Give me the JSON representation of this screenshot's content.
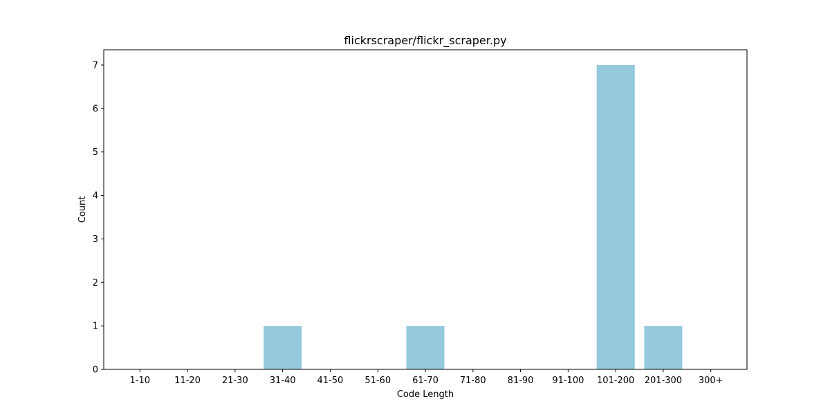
{
  "chart_data": {
    "type": "bar",
    "title": "flickrscraper/flickr_scraper.py",
    "xlabel": "Code Length",
    "ylabel": "Count",
    "categories": [
      "1-10",
      "11-20",
      "21-30",
      "31-40",
      "41-50",
      "51-60",
      "61-70",
      "71-80",
      "81-90",
      "91-100",
      "101-200",
      "201-300",
      "300+"
    ],
    "values": [
      0,
      0,
      0,
      1,
      0,
      0,
      1,
      0,
      0,
      0,
      7,
      1,
      0
    ],
    "ylim": [
      0,
      7.35
    ],
    "yticks": [
      0,
      1,
      2,
      3,
      4,
      5,
      6,
      7
    ],
    "grid": false,
    "bar_color": "#95c9dd"
  }
}
